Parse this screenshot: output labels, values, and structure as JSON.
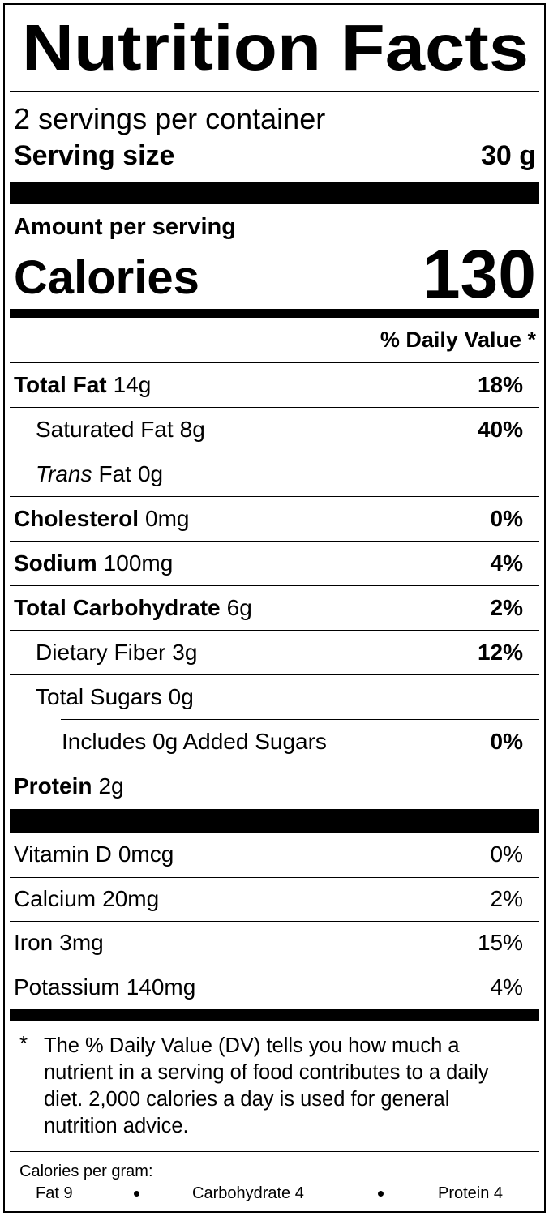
{
  "title": "Nutrition Facts",
  "servings": "2 servings per container",
  "serving_size": {
    "label": "Serving size",
    "value": "30 g"
  },
  "amount_per_serving": "Amount per serving",
  "calories": {
    "label": "Calories",
    "value": "130"
  },
  "dv_header": "% Daily Value *",
  "nutrients": [
    {
      "name": "Total Fat",
      "amount": "14g",
      "dv": "18%",
      "sub": [
        {
          "name": "Saturated Fat",
          "amount": "8g",
          "dv": "40%"
        },
        {
          "name_italic": "Trans",
          "name": "Fat",
          "amount": "0g"
        }
      ]
    },
    {
      "name": "Cholesterol",
      "amount": "0mg",
      "dv": "0%"
    },
    {
      "name": "Sodium",
      "amount": "100mg",
      "dv": "4%"
    },
    {
      "name": "Total Carbohydrate",
      "amount": "6g",
      "dv": "2%",
      "sub": [
        {
          "name": "Dietary Fiber",
          "amount": "3g",
          "dv": "12%"
        },
        {
          "name": "Total Sugars",
          "amount": "0g",
          "sub": [
            {
              "name": "Includes 0g Added Sugars",
              "dv": "0%"
            }
          ]
        }
      ]
    },
    {
      "name": "Protein",
      "amount": "2g"
    }
  ],
  "vitamins": [
    {
      "name": "Vitamin D",
      "amount": "0mcg",
      "dv": "0%"
    },
    {
      "name": "Calcium",
      "amount": "20mg",
      "dv": "2%"
    },
    {
      "name": "Iron",
      "amount": "3mg",
      "dv": "15%"
    },
    {
      "name": "Potassium",
      "amount": "140mg",
      "dv": "4%"
    }
  ],
  "footnote": {
    "mark": "*",
    "text": "The % Daily Value (DV) tells you how much a nutrient in a serving of food contributes to a daily diet. 2,000 calories a day is used for general nutrition advice."
  },
  "calories_per_gram": {
    "label": "Calories per gram:",
    "items": [
      "Fat 9",
      "Carbohydrate 4",
      "Protein 4"
    ]
  }
}
